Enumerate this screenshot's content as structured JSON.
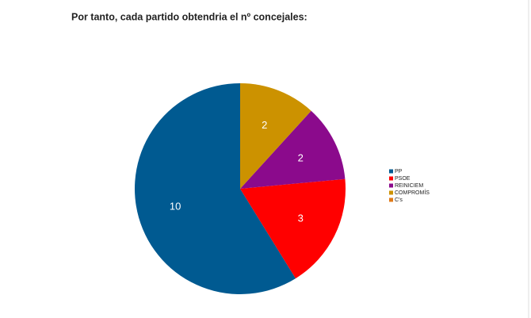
{
  "chart_data": {
    "type": "pie",
    "title": "Por tanto, cada partido obtendria el nº concejales:",
    "categories": [
      "PP",
      "PSOE",
      "REINICIEM",
      "COMPROMÍS",
      "C's"
    ],
    "values": [
      10,
      3,
      2,
      2,
      0
    ],
    "colors": [
      "#005a91",
      "#ff0000",
      "#8b0a8c",
      "#cc9200",
      "#e07a18"
    ],
    "direction": "counterclockwise",
    "legend": "right"
  }
}
